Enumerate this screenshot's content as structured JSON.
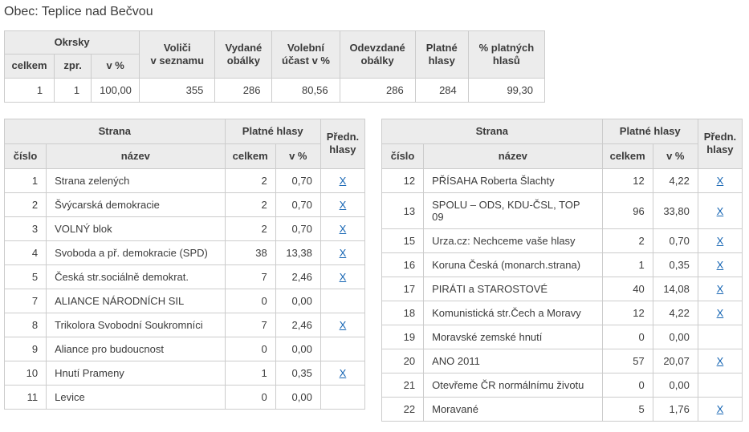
{
  "page": {
    "title": "Obec: Teplice nad Bečvou"
  },
  "colors": {
    "link_blue": "#1464b3",
    "header_bg": "#ececec",
    "border_outer": "#b0b0b0",
    "border_inner": "#cccccc",
    "text": "#3b3b3b"
  },
  "summary": {
    "group_header": "Okrsky",
    "headers": {
      "celkem": "celkem",
      "zpr": "zpr.",
      "v_pct": "v %",
      "volici": "Voliči\nv seznamu",
      "vydane": "Vydané\nobálky",
      "ucast": "Volební\núčast v %",
      "odevzdane": "Odevzdané\nobálky",
      "platne": "Platné\nhlasy",
      "pct_platnych": "% platných\nhlasů"
    },
    "row": {
      "okrsky_celkem": "1",
      "okrsky_zpr": "1",
      "okrsky_v_pct": "100,00",
      "volici": "355",
      "vydane": "286",
      "ucast": "80,56",
      "odevzdane": "286",
      "platne": "284",
      "pct_platnych": "99,30"
    }
  },
  "party_tables": {
    "headers": {
      "strana": "Strana",
      "platne_hlasy": "Platné hlasy",
      "predn_hlasy": "Předn.\nhlasy",
      "cislo": "číslo",
      "nazev": "název",
      "celkem": "celkem",
      "v_pct": "v %"
    },
    "pref_link_label": "X",
    "left_rows": [
      {
        "num": "1",
        "name": "Strana zelených",
        "total": "2",
        "pct": "0,70",
        "pref_link": true
      },
      {
        "num": "2",
        "name": "Švýcarská demokracie",
        "total": "2",
        "pct": "0,70",
        "pref_link": true
      },
      {
        "num": "3",
        "name": "VOLNÝ blok",
        "total": "2",
        "pct": "0,70",
        "pref_link": true
      },
      {
        "num": "4",
        "name": "Svoboda a př. demokracie (SPD)",
        "total": "38",
        "pct": "13,38",
        "pref_link": true
      },
      {
        "num": "5",
        "name": "Česká str.sociálně demokrat.",
        "total": "7",
        "pct": "2,46",
        "pref_link": true
      },
      {
        "num": "7",
        "name": "ALIANCE NÁRODNÍCH SIL",
        "total": "0",
        "pct": "0,00",
        "pref_link": false
      },
      {
        "num": "8",
        "name": "Trikolora Svobodní Soukromníci",
        "total": "7",
        "pct": "2,46",
        "pref_link": true
      },
      {
        "num": "9",
        "name": "Aliance pro budoucnost",
        "total": "0",
        "pct": "0,00",
        "pref_link": false
      },
      {
        "num": "10",
        "name": "Hnutí Prameny",
        "total": "1",
        "pct": "0,35",
        "pref_link": true
      },
      {
        "num": "11",
        "name": "Levice",
        "total": "0",
        "pct": "0,00",
        "pref_link": false
      }
    ],
    "right_rows": [
      {
        "num": "12",
        "name": "PŘÍSAHA Roberta Šlachty",
        "total": "12",
        "pct": "4,22",
        "pref_link": true
      },
      {
        "num": "13",
        "name": "SPOLU – ODS, KDU-ČSL, TOP 09",
        "total": "96",
        "pct": "33,80",
        "pref_link": true
      },
      {
        "num": "15",
        "name": "Urza.cz: Nechceme vaše hlasy",
        "total": "2",
        "pct": "0,70",
        "pref_link": true
      },
      {
        "num": "16",
        "name": "Koruna Česká (monarch.strana)",
        "total": "1",
        "pct": "0,35",
        "pref_link": true
      },
      {
        "num": "17",
        "name": "PIRÁTI a STAROSTOVÉ",
        "total": "40",
        "pct": "14,08",
        "pref_link": true
      },
      {
        "num": "18",
        "name": "Komunistická str.Čech a Moravy",
        "total": "12",
        "pct": "4,22",
        "pref_link": true
      },
      {
        "num": "19",
        "name": "Moravské zemské hnutí",
        "total": "0",
        "pct": "0,00",
        "pref_link": false
      },
      {
        "num": "20",
        "name": "ANO 2011",
        "total": "57",
        "pct": "20,07",
        "pref_link": true
      },
      {
        "num": "21",
        "name": "Otevřeme ČR normálnímu životu",
        "total": "0",
        "pct": "0,00",
        "pref_link": false
      },
      {
        "num": "22",
        "name": "Moravané",
        "total": "5",
        "pct": "1,76",
        "pref_link": true
      }
    ]
  }
}
